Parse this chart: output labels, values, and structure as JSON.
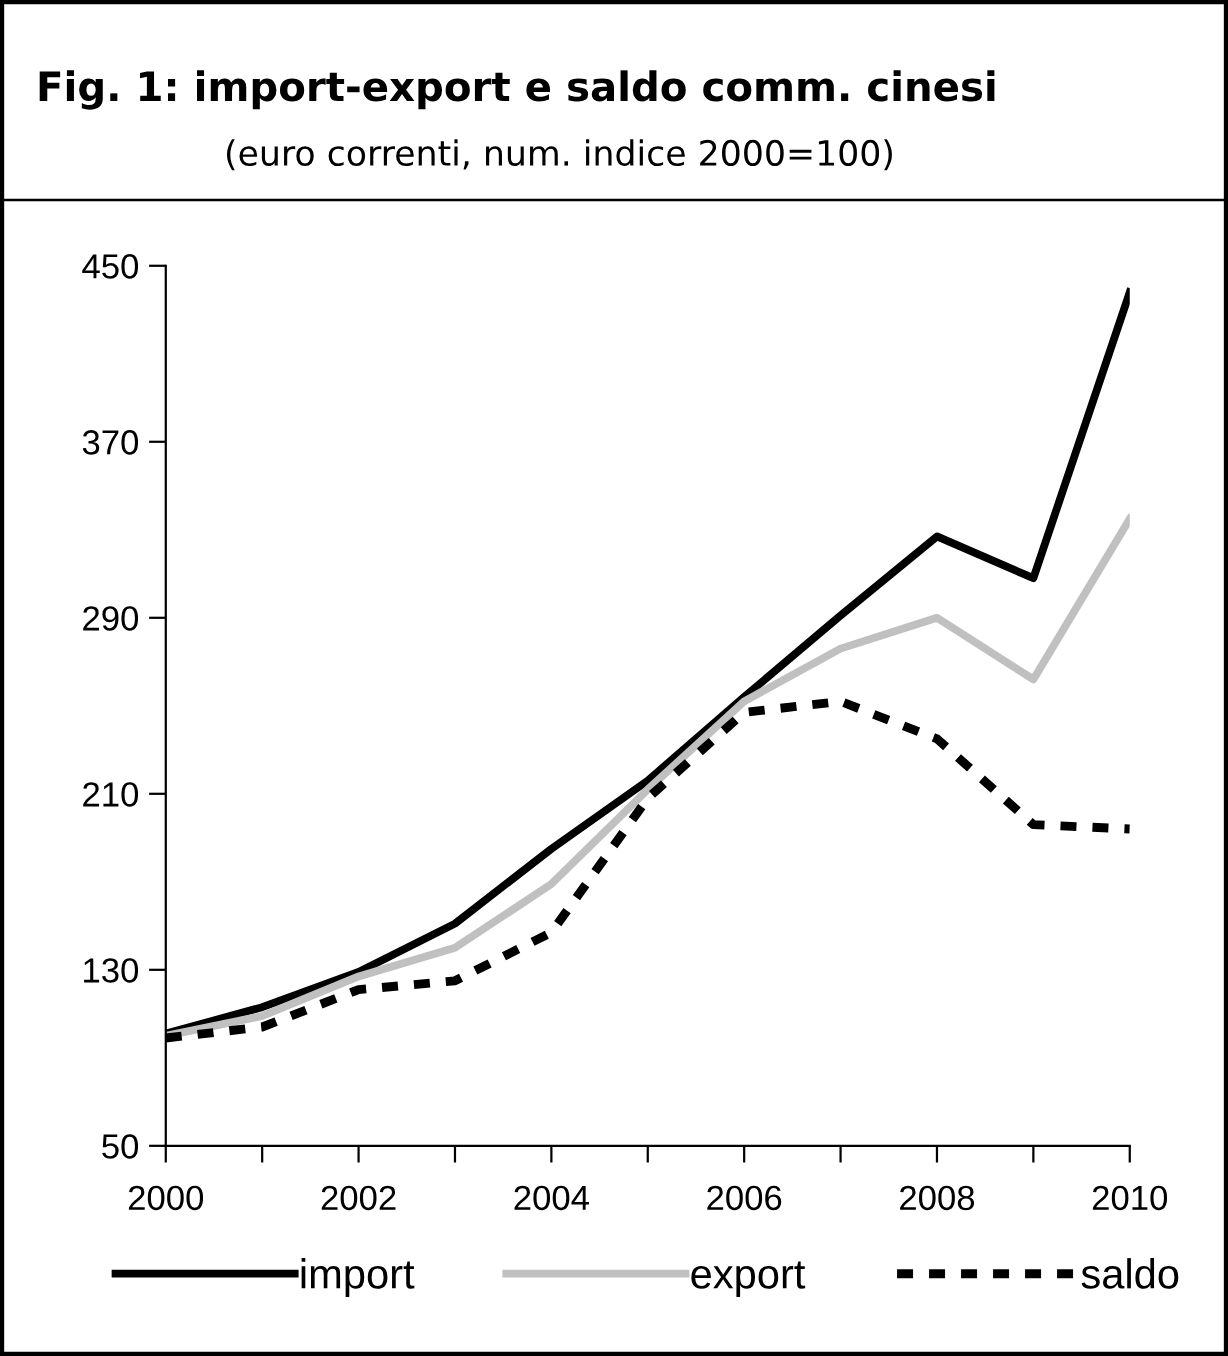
{
  "chart_data": {
    "type": "line",
    "title": "Fig. 1: import-export e saldo comm. cinesi",
    "subtitle": "(euro correnti, num. indice 2000=100)",
    "x": [
      2000,
      2001,
      2002,
      2003,
      2004,
      2005,
      2006,
      2007,
      2008,
      2009,
      2010
    ],
    "series": [
      {
        "name": "import",
        "color": "#000000",
        "line_style": "solid",
        "values": [
          101,
          113,
          129,
          151,
          185,
          216,
          254,
          291,
          327,
          308,
          438
        ]
      },
      {
        "name": "export",
        "color": "#c0c0c0",
        "line_style": "solid",
        "values": [
          100,
          109,
          127,
          140,
          169,
          212,
          252,
          276,
          290,
          262,
          335
        ]
      },
      {
        "name": "saldo",
        "color": "#000000",
        "line_style": "dashed",
        "values": [
          99,
          104,
          121,
          125,
          147,
          208,
          247,
          252,
          235,
          196,
          194
        ]
      }
    ],
    "xlim": [
      2000,
      2010
    ],
    "xticks": [
      2000,
      {
        "value": 2001,
        "label": null
      },
      2002,
      {
        "value": 2003,
        "label": null
      },
      2004,
      {
        "value": 2005,
        "label": null
      },
      2006,
      {
        "value": 2007,
        "label": null
      },
      2008,
      {
        "value": 2009,
        "label": null
      },
      2010
    ],
    "ylim": [
      50,
      450
    ],
    "yticks": [
      50,
      130,
      210,
      290,
      370,
      450
    ],
    "grid": false,
    "legend": "bottom",
    "marker": "none"
  }
}
